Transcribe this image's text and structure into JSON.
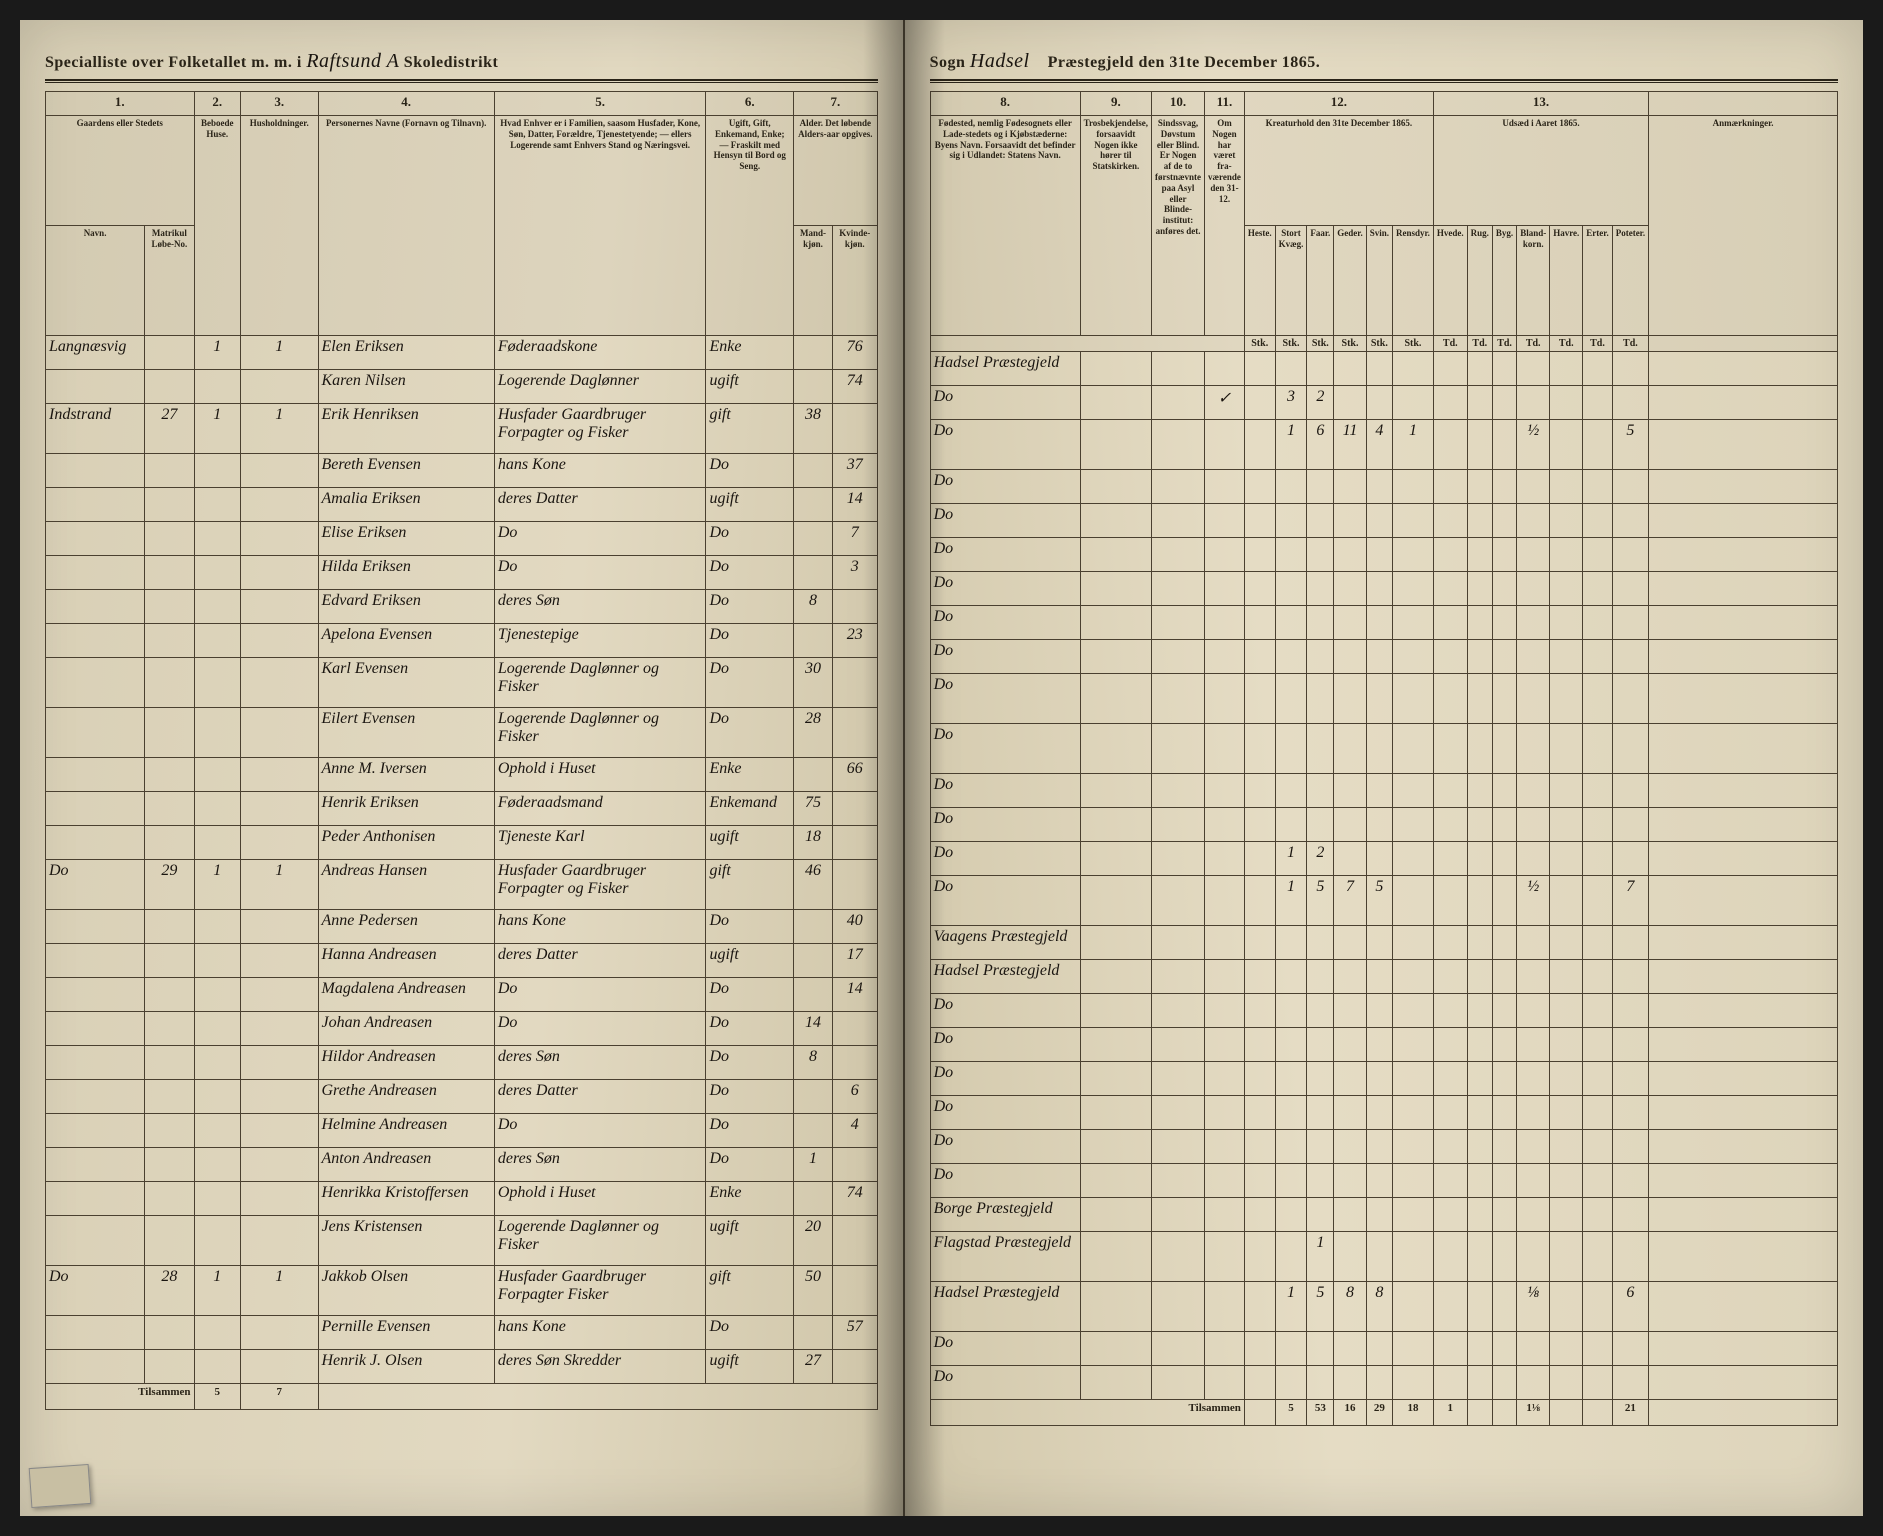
{
  "colors": {
    "paper": "#e2d9c1",
    "ink": "#2a2418",
    "handwriting": "#1a1510",
    "rule": "#4a4030",
    "background": "#1a1a1a"
  },
  "typography": {
    "printed_font": "Georgia, Times New Roman, serif",
    "handwritten_font": "Brush Script MT, cursive",
    "header_size_pt": 16,
    "cell_print_size_pt": 10,
    "cell_hand_size_pt": 16
  },
  "left": {
    "header_printed_prefix": "Specialliste over Folketallet m. m. i",
    "header_handwritten": "Raftsund A",
    "header_printed_suffix": "Skoledistrikt",
    "col_numbers": [
      "1.",
      "2.",
      "3.",
      "4.",
      "5.",
      "6.",
      "7."
    ],
    "col_headers": {
      "c1": "Gaardens eller Stedets",
      "c1_sub_a": "Navn.",
      "c1_sub_b": "Matrikul Løbe-No.",
      "c2": "Beboede Huse.",
      "c3": "Husholdninger.",
      "c4": "Personernes Navne (Fornavn og Tilnavn).",
      "c5": "Hvad Enhver er i Familien, saasom Husfader, Kone, Søn, Datter, Forældre, Tjenestetyende; — ellers Logerende samt Enhvers Stand og Næringsvei.",
      "c6": "Ugift, Gift, Enkemand, Enke; — Fraskilt med Hensyn til Bord og Seng.",
      "c7": "Alder. Det løbende Alders-aar opgives.",
      "c7_sub_a": "Mand-kjøn.",
      "c7_sub_b": "Kvinde-kjøn."
    },
    "rows": [
      {
        "place": "Langnæsvig",
        "mat": "",
        "hus": "1",
        "hh": "1",
        "name": "Elen Eriksen",
        "rel": "Føderaadskone",
        "stat": "Enke",
        "age_m": "",
        "age_f": "76"
      },
      {
        "place": "",
        "mat": "",
        "hus": "",
        "hh": "",
        "name": "Karen Nilsen",
        "rel": "Logerende Daglønner",
        "stat": "ugift",
        "age_m": "",
        "age_f": "74"
      },
      {
        "place": "Indstrand",
        "mat": "27",
        "hus": "1",
        "hh": "1",
        "name": "Erik Henriksen",
        "rel": "Husfader Gaardbruger Forpagter og Fisker",
        "stat": "gift",
        "age_m": "38",
        "age_f": ""
      },
      {
        "place": "",
        "mat": "",
        "hus": "",
        "hh": "",
        "name": "Bereth Evensen",
        "rel": "hans Kone",
        "stat": "Do",
        "age_m": "",
        "age_f": "37"
      },
      {
        "place": "",
        "mat": "",
        "hus": "",
        "hh": "",
        "name": "Amalia Eriksen",
        "rel": "deres Datter",
        "stat": "ugift",
        "age_m": "",
        "age_f": "14"
      },
      {
        "place": "",
        "mat": "",
        "hus": "",
        "hh": "",
        "name": "Elise Eriksen",
        "rel": "Do",
        "stat": "Do",
        "age_m": "",
        "age_f": "7"
      },
      {
        "place": "",
        "mat": "",
        "hus": "",
        "hh": "",
        "name": "Hilda Eriksen",
        "rel": "Do",
        "stat": "Do",
        "age_m": "",
        "age_f": "3"
      },
      {
        "place": "",
        "mat": "",
        "hus": "",
        "hh": "",
        "name": "Edvard Eriksen",
        "rel": "deres Søn",
        "stat": "Do",
        "age_m": "8",
        "age_f": ""
      },
      {
        "place": "",
        "mat": "",
        "hus": "",
        "hh": "",
        "name": "Apelona Evensen",
        "rel": "Tjenestepige",
        "stat": "Do",
        "age_m": "",
        "age_f": "23"
      },
      {
        "place": "",
        "mat": "",
        "hus": "",
        "hh": "",
        "name": "Karl Evensen",
        "rel": "Logerende Daglønner og Fisker",
        "stat": "Do",
        "age_m": "30",
        "age_f": ""
      },
      {
        "place": "",
        "mat": "",
        "hus": "",
        "hh": "",
        "name": "Eilert Evensen",
        "rel": "Logerende Daglønner og Fisker",
        "stat": "Do",
        "age_m": "28",
        "age_f": ""
      },
      {
        "place": "",
        "mat": "",
        "hus": "",
        "hh": "",
        "name": "Anne M. Iversen",
        "rel": "Ophold i Huset",
        "stat": "Enke",
        "age_m": "",
        "age_f": "66"
      },
      {
        "place": "",
        "mat": "",
        "hus": "",
        "hh": "",
        "name": "Henrik Eriksen",
        "rel": "Føderaadsmand",
        "stat": "Enkemand",
        "age_m": "75",
        "age_f": ""
      },
      {
        "place": "",
        "mat": "",
        "hus": "",
        "hh": "",
        "name": "Peder Anthonisen",
        "rel": "Tjeneste Karl",
        "stat": "ugift",
        "age_m": "18",
        "age_f": ""
      },
      {
        "place": "Do",
        "mat": "29",
        "hus": "1",
        "hh": "1",
        "name": "Andreas Hansen",
        "rel": "Husfader Gaardbruger Forpagter og Fisker",
        "stat": "gift",
        "age_m": "46",
        "age_f": ""
      },
      {
        "place": "",
        "mat": "",
        "hus": "",
        "hh": "",
        "name": "Anne Pedersen",
        "rel": "hans Kone",
        "stat": "Do",
        "age_m": "",
        "age_f": "40"
      },
      {
        "place": "",
        "mat": "",
        "hus": "",
        "hh": "",
        "name": "Hanna Andreasen",
        "rel": "deres Datter",
        "stat": "ugift",
        "age_m": "",
        "age_f": "17"
      },
      {
        "place": "",
        "mat": "",
        "hus": "",
        "hh": "",
        "name": "Magdalena Andreasen",
        "rel": "Do",
        "stat": "Do",
        "age_m": "",
        "age_f": "14"
      },
      {
        "place": "",
        "mat": "",
        "hus": "",
        "hh": "",
        "name": "Johan Andreasen",
        "rel": "Do",
        "stat": "Do",
        "age_m": "14",
        "age_f": ""
      },
      {
        "place": "",
        "mat": "",
        "hus": "",
        "hh": "",
        "name": "Hildor Andreasen",
        "rel": "deres Søn",
        "stat": "Do",
        "age_m": "8",
        "age_f": ""
      },
      {
        "place": "",
        "mat": "",
        "hus": "",
        "hh": "",
        "name": "Grethe Andreasen",
        "rel": "deres Datter",
        "stat": "Do",
        "age_m": "",
        "age_f": "6"
      },
      {
        "place": "",
        "mat": "",
        "hus": "",
        "hh": "",
        "name": "Helmine Andreasen",
        "rel": "Do",
        "stat": "Do",
        "age_m": "",
        "age_f": "4"
      },
      {
        "place": "",
        "mat": "",
        "hus": "",
        "hh": "",
        "name": "Anton Andreasen",
        "rel": "deres Søn",
        "stat": "Do",
        "age_m": "1",
        "age_f": ""
      },
      {
        "place": "",
        "mat": "",
        "hus": "",
        "hh": "",
        "name": "Henrikka Kristoffersen",
        "rel": "Ophold i Huset",
        "stat": "Enke",
        "age_m": "",
        "age_f": "74"
      },
      {
        "place": "",
        "mat": "",
        "hus": "",
        "hh": "",
        "name": "Jens Kristensen",
        "rel": "Logerende Daglønner og Fisker",
        "stat": "ugift",
        "age_m": "20",
        "age_f": ""
      },
      {
        "place": "Do",
        "mat": "28",
        "hus": "1",
        "hh": "1",
        "name": "Jakkob Olsen",
        "rel": "Husfader Gaardbruger Forpagter Fisker",
        "stat": "gift",
        "age_m": "50",
        "age_f": ""
      },
      {
        "place": "",
        "mat": "",
        "hus": "",
        "hh": "",
        "name": "Pernille Evensen",
        "rel": "hans Kone",
        "stat": "Do",
        "age_m": "",
        "age_f": "57"
      },
      {
        "place": "",
        "mat": "",
        "hus": "",
        "hh": "",
        "name": "Henrik J. Olsen",
        "rel": "deres Søn Skredder",
        "stat": "ugift",
        "age_m": "27",
        "age_f": ""
      }
    ],
    "footer_label": "Tilsammen",
    "footer_vals": {
      "hus": "5",
      "hh": "7"
    }
  },
  "right": {
    "header_sogn_label": "Sogn",
    "header_sogn_value": "Hadsel",
    "header_printed_suffix": "Præstegjeld den 31te December 1865.",
    "col_numbers": [
      "8.",
      "9.",
      "10.",
      "11.",
      "12.",
      "13."
    ],
    "col_headers": {
      "c8": "Fødested, nemlig Fødesognets eller Lade-stedets og i Kjøbstæderne: Byens Navn. Forsaavidt det befinder sig i Udlandet: Statens Navn.",
      "c9": "Trosbekjendelse, forsaavidt Nogen ikke hører til Statskirken.",
      "c10": "Sindssvag, Døvstum eller Blind. Er Nogen af de to førstnævnte paa Asyl eller Blinde-institut: anføres det.",
      "c11": "Om Nogen har været fra-værende den 31-12.",
      "c12_title": "Kreaturhold den 31te December 1865.",
      "c12_subs": [
        "Heste.",
        "Stort Kvæg.",
        "Faar.",
        "Geder.",
        "Svin.",
        "Rensdyr."
      ],
      "c13_title": "Udsæd i Aaret 1865.",
      "c13_subs": [
        "Hvede.",
        "Rug.",
        "Byg.",
        "Bland-korn.",
        "Havre.",
        "Erter.",
        "Poteter."
      ],
      "c14": "Anmærkninger.",
      "unit": "Stk.",
      "unit2": "Td."
    },
    "rows": [
      {
        "birth": "Hadsel Præstegjeld",
        "c9": "",
        "c10": "",
        "c11": "",
        "h": "",
        "k": "",
        "f": "",
        "g": "",
        "s": "",
        "r": "",
        "hv": "",
        "ru": "",
        "by": "",
        "bl": "",
        "ha": "",
        "er": "",
        "po": "",
        "anm": ""
      },
      {
        "birth": "Do",
        "c9": "",
        "c10": "",
        "c11": "✓",
        "h": "",
        "k": "3",
        "f": "2",
        "g": "",
        "s": "",
        "r": "",
        "hv": "",
        "ru": "",
        "by": "",
        "bl": "",
        "ha": "",
        "er": "",
        "po": "",
        "anm": ""
      },
      {
        "birth": "Do",
        "c9": "",
        "c10": "",
        "c11": "",
        "h": "",
        "k": "1",
        "f": "6",
        "g": "11",
        "s": "4",
        "r": "1",
        "hv": "",
        "ru": "",
        "by": "",
        "bl": "½",
        "ha": "",
        "er": "",
        "po": "5",
        "anm": ""
      },
      {
        "birth": "Do",
        "c9": "",
        "c10": "",
        "c11": "",
        "h": "",
        "k": "",
        "f": "",
        "g": "",
        "s": "",
        "r": "",
        "hv": "",
        "ru": "",
        "by": "",
        "bl": "",
        "ha": "",
        "er": "",
        "po": "",
        "anm": ""
      },
      {
        "birth": "Do",
        "c9": "",
        "c10": "",
        "c11": "",
        "h": "",
        "k": "",
        "f": "",
        "g": "",
        "s": "",
        "r": "",
        "hv": "",
        "ru": "",
        "by": "",
        "bl": "",
        "ha": "",
        "er": "",
        "po": "",
        "anm": ""
      },
      {
        "birth": "Do",
        "c9": "",
        "c10": "",
        "c11": "",
        "h": "",
        "k": "",
        "f": "",
        "g": "",
        "s": "",
        "r": "",
        "hv": "",
        "ru": "",
        "by": "",
        "bl": "",
        "ha": "",
        "er": "",
        "po": "",
        "anm": ""
      },
      {
        "birth": "Do",
        "c9": "",
        "c10": "",
        "c11": "",
        "h": "",
        "k": "",
        "f": "",
        "g": "",
        "s": "",
        "r": "",
        "hv": "",
        "ru": "",
        "by": "",
        "bl": "",
        "ha": "",
        "er": "",
        "po": "",
        "anm": ""
      },
      {
        "birth": "Do",
        "c9": "",
        "c10": "",
        "c11": "",
        "h": "",
        "k": "",
        "f": "",
        "g": "",
        "s": "",
        "r": "",
        "hv": "",
        "ru": "",
        "by": "",
        "bl": "",
        "ha": "",
        "er": "",
        "po": "",
        "anm": ""
      },
      {
        "birth": "Do",
        "c9": "",
        "c10": "",
        "c11": "",
        "h": "",
        "k": "",
        "f": "",
        "g": "",
        "s": "",
        "r": "",
        "hv": "",
        "ru": "",
        "by": "",
        "bl": "",
        "ha": "",
        "er": "",
        "po": "",
        "anm": ""
      },
      {
        "birth": "Do",
        "c9": "",
        "c10": "",
        "c11": "",
        "h": "",
        "k": "",
        "f": "",
        "g": "",
        "s": "",
        "r": "",
        "hv": "",
        "ru": "",
        "by": "",
        "bl": "",
        "ha": "",
        "er": "",
        "po": "",
        "anm": ""
      },
      {
        "birth": "Do",
        "c9": "",
        "c10": "",
        "c11": "",
        "h": "",
        "k": "",
        "f": "",
        "g": "",
        "s": "",
        "r": "",
        "hv": "",
        "ru": "",
        "by": "",
        "bl": "",
        "ha": "",
        "er": "",
        "po": "",
        "anm": ""
      },
      {
        "birth": "Do",
        "c9": "",
        "c10": "",
        "c11": "",
        "h": "",
        "k": "",
        "f": "",
        "g": "",
        "s": "",
        "r": "",
        "hv": "",
        "ru": "",
        "by": "",
        "bl": "",
        "ha": "",
        "er": "",
        "po": "",
        "anm": ""
      },
      {
        "birth": "Do",
        "c9": "",
        "c10": "",
        "c11": "",
        "h": "",
        "k": "",
        "f": "",
        "g": "",
        "s": "",
        "r": "",
        "hv": "",
        "ru": "",
        "by": "",
        "bl": "",
        "ha": "",
        "er": "",
        "po": "",
        "anm": ""
      },
      {
        "birth": "Do",
        "c9": "",
        "c10": "",
        "c11": "",
        "h": "",
        "k": "1",
        "f": "2",
        "g": "",
        "s": "",
        "r": "",
        "hv": "",
        "ru": "",
        "by": "",
        "bl": "",
        "ha": "",
        "er": "",
        "po": "",
        "anm": ""
      },
      {
        "birth": "Do",
        "c9": "",
        "c10": "",
        "c11": "",
        "h": "",
        "k": "1",
        "f": "5",
        "g": "7",
        "s": "5",
        "r": "",
        "hv": "",
        "ru": "",
        "by": "",
        "bl": "½",
        "ha": "",
        "er": "",
        "po": "7",
        "anm": ""
      },
      {
        "birth": "Vaagens Præstegjeld",
        "c9": "",
        "c10": "",
        "c11": "",
        "h": "",
        "k": "",
        "f": "",
        "g": "",
        "s": "",
        "r": "",
        "hv": "",
        "ru": "",
        "by": "",
        "bl": "",
        "ha": "",
        "er": "",
        "po": "",
        "anm": ""
      },
      {
        "birth": "Hadsel Præstegjeld",
        "c9": "",
        "c10": "",
        "c11": "",
        "h": "",
        "k": "",
        "f": "",
        "g": "",
        "s": "",
        "r": "",
        "hv": "",
        "ru": "",
        "by": "",
        "bl": "",
        "ha": "",
        "er": "",
        "po": "",
        "anm": ""
      },
      {
        "birth": "Do",
        "c9": "",
        "c10": "",
        "c11": "",
        "h": "",
        "k": "",
        "f": "",
        "g": "",
        "s": "",
        "r": "",
        "hv": "",
        "ru": "",
        "by": "",
        "bl": "",
        "ha": "",
        "er": "",
        "po": "",
        "anm": ""
      },
      {
        "birth": "Do",
        "c9": "",
        "c10": "",
        "c11": "",
        "h": "",
        "k": "",
        "f": "",
        "g": "",
        "s": "",
        "r": "",
        "hv": "",
        "ru": "",
        "by": "",
        "bl": "",
        "ha": "",
        "er": "",
        "po": "",
        "anm": ""
      },
      {
        "birth": "Do",
        "c9": "",
        "c10": "",
        "c11": "",
        "h": "",
        "k": "",
        "f": "",
        "g": "",
        "s": "",
        "r": "",
        "hv": "",
        "ru": "",
        "by": "",
        "bl": "",
        "ha": "",
        "er": "",
        "po": "",
        "anm": ""
      },
      {
        "birth": "Do",
        "c9": "",
        "c10": "",
        "c11": "",
        "h": "",
        "k": "",
        "f": "",
        "g": "",
        "s": "",
        "r": "",
        "hv": "",
        "ru": "",
        "by": "",
        "bl": "",
        "ha": "",
        "er": "",
        "po": "",
        "anm": ""
      },
      {
        "birth": "Do",
        "c9": "",
        "c10": "",
        "c11": "",
        "h": "",
        "k": "",
        "f": "",
        "g": "",
        "s": "",
        "r": "",
        "hv": "",
        "ru": "",
        "by": "",
        "bl": "",
        "ha": "",
        "er": "",
        "po": "",
        "anm": ""
      },
      {
        "birth": "Do",
        "c9": "",
        "c10": "",
        "c11": "",
        "h": "",
        "k": "",
        "f": "",
        "g": "",
        "s": "",
        "r": "",
        "hv": "",
        "ru": "",
        "by": "",
        "bl": "",
        "ha": "",
        "er": "",
        "po": "",
        "anm": ""
      },
      {
        "birth": "Borge Præstegjeld",
        "c9": "",
        "c10": "",
        "c11": "",
        "h": "",
        "k": "",
        "f": "",
        "g": "",
        "s": "",
        "r": "",
        "hv": "",
        "ru": "",
        "by": "",
        "bl": "",
        "ha": "",
        "er": "",
        "po": "",
        "anm": ""
      },
      {
        "birth": "Flagstad Præstegjeld",
        "c9": "",
        "c10": "",
        "c11": "",
        "h": "",
        "k": "",
        "f": "1",
        "g": "",
        "s": "",
        "r": "",
        "hv": "",
        "ru": "",
        "by": "",
        "bl": "",
        "ha": "",
        "er": "",
        "po": "",
        "anm": ""
      },
      {
        "birth": "Hadsel Præstegjeld",
        "c9": "",
        "c10": "",
        "c11": "",
        "h": "",
        "k": "1",
        "f": "5",
        "g": "8",
        "s": "8",
        "r": "",
        "hv": "",
        "ru": "",
        "by": "",
        "bl": "⅛",
        "ha": "",
        "er": "",
        "po": "6",
        "anm": ""
      },
      {
        "birth": "Do",
        "c9": "",
        "c10": "",
        "c11": "",
        "h": "",
        "k": "",
        "f": "",
        "g": "",
        "s": "",
        "r": "",
        "hv": "",
        "ru": "",
        "by": "",
        "bl": "",
        "ha": "",
        "er": "",
        "po": "",
        "anm": ""
      },
      {
        "birth": "Do",
        "c9": "",
        "c10": "",
        "c11": "",
        "h": "",
        "k": "",
        "f": "",
        "g": "",
        "s": "",
        "r": "",
        "hv": "",
        "ru": "",
        "by": "",
        "bl": "",
        "ha": "",
        "er": "",
        "po": "",
        "anm": ""
      }
    ],
    "footer_label": "Tilsammen",
    "footer_vals": {
      "h": "",
      "k": "5",
      "f": "53",
      "g": "16",
      "s": "29",
      "r": "18",
      "hv": "1",
      "ru": "",
      "by": "",
      "bl": "1⅛",
      "ha": "",
      "er": "",
      "po": "21"
    }
  }
}
